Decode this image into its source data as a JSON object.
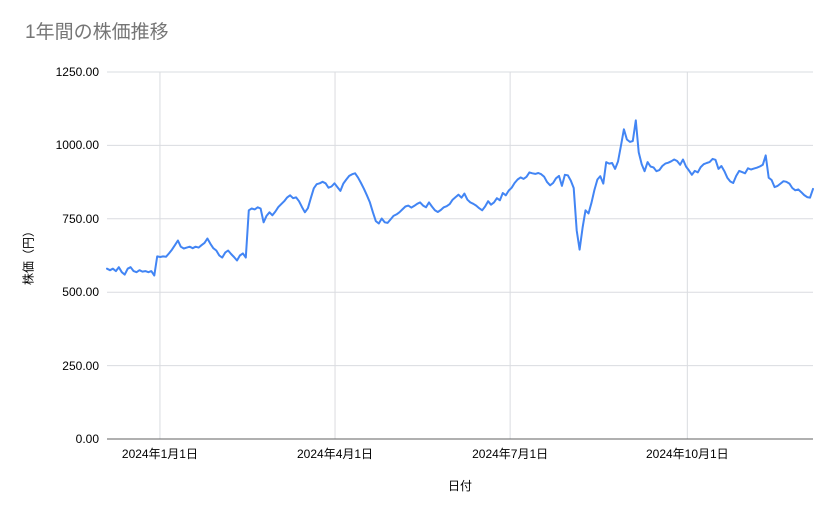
{
  "page": {
    "background": "#ffffff"
  },
  "chart_data": {
    "type": "line",
    "title": "1年間の株価推移",
    "xlabel": "日付",
    "ylabel": "株価（円）",
    "ylim": [
      0,
      1250
    ],
    "grid": true,
    "legend": false,
    "colors": {
      "title_text": "#757575",
      "tick_text": "#000000",
      "grid": "#dadce0",
      "axis": "#616161",
      "background": "#ffffff"
    },
    "y_ticks": [
      {
        "value": 1250,
        "label": "1250.00"
      },
      {
        "value": 1000,
        "label": "1000.00"
      },
      {
        "value": 750,
        "label": "750.00"
      },
      {
        "value": 500,
        "label": "500.00"
      },
      {
        "value": 250,
        "label": "250.00"
      },
      {
        "value": 0,
        "label": "0.00"
      }
    ],
    "x_ticks": [
      {
        "label": "2024年1月1日",
        "pos": 0.075
      },
      {
        "label": "2024年4月1日",
        "pos": 0.323
      },
      {
        "label": "2024年7月1日",
        "pos": 0.571
      },
      {
        "label": "2024年10月1日",
        "pos": 0.822
      }
    ],
    "series": [
      {
        "name": "株価",
        "color": "#4285f4",
        "values": [
          580,
          575,
          580,
          572,
          585,
          568,
          560,
          580,
          585,
          572,
          568,
          575,
          570,
          572,
          568,
          572,
          557,
          622,
          620,
          622,
          621,
          632,
          645,
          660,
          676,
          655,
          649,
          652,
          655,
          650,
          655,
          652,
          660,
          668,
          683,
          665,
          650,
          642,
          625,
          618,
          635,
          642,
          630,
          620,
          608,
          625,
          632,
          618,
          779,
          785,
          782,
          789,
          785,
          738,
          760,
          772,
          762,
          775,
          790,
          800,
          810,
          823,
          830,
          820,
          823,
          810,
          790,
          772,
          786,
          820,
          854,
          868,
          871,
          876,
          871,
          856,
          860,
          871,
          858,
          845,
          870,
          884,
          896,
          902,
          905,
          890,
          872,
          852,
          830,
          806,
          772,
          742,
          734,
          751,
          738,
          736,
          748,
          760,
          765,
          772,
          782,
          792,
          795,
          788,
          794,
          801,
          806,
          795,
          789,
          806,
          792,
          779,
          773,
          780,
          789,
          793,
          800,
          815,
          824,
          832,
          822,
          836,
          815,
          806,
          801,
          795,
          786,
          779,
          792,
          810,
          798,
          806,
          820,
          813,
          838,
          830,
          846,
          856,
          872,
          884,
          891,
          886,
          893,
          908,
          905,
          903,
          906,
          902,
          893,
          875,
          864,
          872,
          888,
          896,
          862,
          900,
          898,
          880,
          855,
          710,
          645,
          720,
          779,
          768,
          805,
          848,
          884,
          895,
          870,
          943,
          938,
          940,
          920,
          945,
          1000,
          1055,
          1020,
          1012,
          1015,
          1085,
          977,
          936,
          912,
          943,
          928,
          925,
          912,
          916,
          930,
          938,
          941,
          946,
          952,
          947,
          934,
          952,
          928,
          915,
          900,
          913,
          908,
          926,
          936,
          940,
          943,
          954,
          951,
          920,
          930,
          912,
          890,
          877,
          872,
          896,
          913,
          909,
          905,
          922,
          918,
          921,
          924,
          928,
          934,
          966,
          890,
          882,
          858,
          862,
          870,
          878,
          876,
          870,
          855,
          847,
          850,
          841,
          831,
          824,
          822,
          852
        ]
      }
    ]
  }
}
